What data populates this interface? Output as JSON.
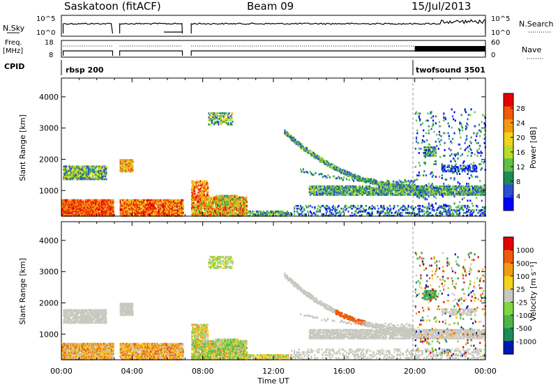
{
  "header": {
    "station": "Saskatoon (fitACF)",
    "beam": "Beam 09",
    "date": "15/Jul/2013"
  },
  "panels": {
    "nsky_label": "N.Sky",
    "nsky_ticks": [
      "10^5",
      "10^0"
    ],
    "nsearch_label": "N.Search",
    "nsearch_ticks": [
      "10^5",
      "10^0"
    ],
    "freq_label_1": "Freq.",
    "freq_label_2": "[MHz]",
    "freq_ticks": [
      "18",
      "8"
    ],
    "nave_label": "Nave",
    "nave_ticks": [
      "60",
      "0"
    ],
    "cpid_label": "CPID",
    "cpid_1": "rbsp 200",
    "cpid_2": "twofsound 3501"
  },
  "chart_data": [
    {
      "type": "heatmap",
      "name": "power",
      "ylabel": "Slant Range [km]",
      "yticks": [
        1000,
        2000,
        3000,
        4000
      ],
      "ylim": [
        180,
        4600
      ],
      "xlim_hours": [
        0,
        24
      ],
      "colorbar_label": "Power [dB]",
      "colorbar_ticks": [
        "28",
        "24",
        "20",
        "16",
        "12",
        "8",
        "4"
      ],
      "colors": [
        "#0000ff",
        "#2b4fd6",
        "#1d8a5a",
        "#5fc04a",
        "#b8dc2c",
        "#f3d21a",
        "#f39a12",
        "#f05a0a",
        "#e60000"
      ]
    },
    {
      "type": "heatmap",
      "name": "velocity",
      "ylabel": "Slant Range [km]",
      "yticks": [
        1000,
        2000,
        3000,
        4000
      ],
      "ylim": [
        180,
        4600
      ],
      "xlim_hours": [
        0,
        24
      ],
      "colorbar_label": "Velocity [m s⁻¹]",
      "colorbar_ticks": [
        "1000",
        "500",
        "100",
        "25",
        "-25",
        "-100",
        "-500",
        "-1000"
      ],
      "colors": [
        "#0016b8",
        "#1d8a5a",
        "#4fb448",
        "#7ed640",
        "#c8c8c0",
        "#f3d21a",
        "#f39a12",
        "#f05a0a",
        "#e60000"
      ]
    }
  ],
  "x_axis": {
    "label": "Time UT",
    "ticks": [
      "00:00",
      "04:00",
      "08:00",
      "12:00",
      "16:00",
      "20:00",
      "00:00"
    ]
  }
}
